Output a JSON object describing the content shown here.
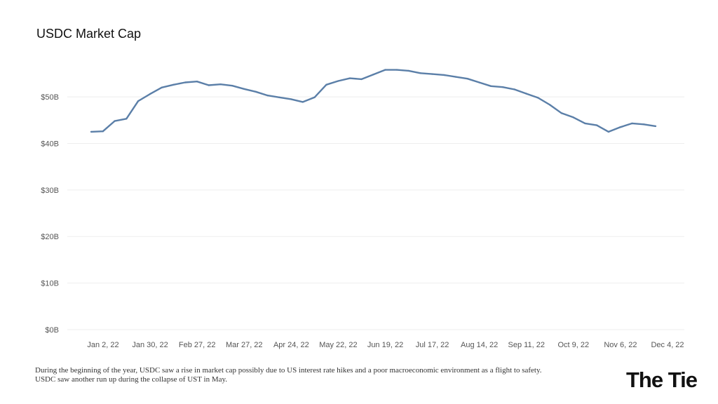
{
  "header": {
    "title": "USDC Market Cap"
  },
  "caption": {
    "line1": "During the beginning of the year, USDC saw a rise in market cap possibly due to US interest rate hikes and a poor macroeconomic environment as a flight to safety.",
    "line2": "USDC saw another run up during the collapse of UST in May."
  },
  "brand": {
    "name": "The Tie"
  },
  "colors": {
    "line": "#5b7fa8",
    "grid": "#eeeeee",
    "axis_text": "#555555"
  },
  "chart_data": {
    "type": "line",
    "title": "USDC Market Cap",
    "xlabel": "",
    "ylabel": "",
    "ylim": [
      0,
      58
    ],
    "y_ticks": [
      0,
      10,
      20,
      30,
      40,
      50
    ],
    "y_tick_labels": [
      "$0B",
      "$10B",
      "$20B",
      "$30B",
      "$40B",
      "$50B"
    ],
    "x_tick_labels": [
      "Jan 2, 22",
      "Jan 30, 22",
      "Feb 27, 22",
      "Mar 27, 22",
      "Apr 24, 22",
      "May 22, 22",
      "Jun 19, 22",
      "Jul 17, 22",
      "Aug 14, 22",
      "Sep 11, 22",
      "Oct 9, 22",
      "Nov 6, 22",
      "Dec 4, 22"
    ],
    "x": [
      "Jan 2, 22",
      "Jan 9, 22",
      "Jan 16, 22",
      "Jan 23, 22",
      "Jan 30, 22",
      "Feb 6, 22",
      "Feb 13, 22",
      "Feb 20, 22",
      "Feb 27, 22",
      "Mar 6, 22",
      "Mar 13, 22",
      "Mar 20, 22",
      "Mar 27, 22",
      "Apr 3, 22",
      "Apr 10, 22",
      "Apr 17, 22",
      "Apr 24, 22",
      "May 1, 22",
      "May 8, 22",
      "May 15, 22",
      "May 22, 22",
      "May 29, 22",
      "Jun 5, 22",
      "Jun 12, 22",
      "Jun 19, 22",
      "Jun 26, 22",
      "Jul 3, 22",
      "Jul 10, 22",
      "Jul 17, 22",
      "Jul 24, 22",
      "Jul 31, 22",
      "Aug 7, 22",
      "Aug 14, 22",
      "Aug 21, 22",
      "Aug 28, 22",
      "Sep 4, 22",
      "Sep 11, 22",
      "Sep 18, 22",
      "Sep 25, 22",
      "Oct 2, 22",
      "Oct 9, 22",
      "Oct 16, 22",
      "Oct 23, 22",
      "Oct 30, 22",
      "Nov 6, 22",
      "Nov 13, 22",
      "Nov 20, 22",
      "Nov 27, 22",
      "Dec 4, 22"
    ],
    "series": [
      {
        "values": [
          42.5,
          42.6,
          44.8,
          45.3,
          49.1,
          50.6,
          52.0,
          52.6,
          53.1,
          53.3,
          52.5,
          52.7,
          52.4,
          51.7,
          51.1,
          50.3,
          49.9,
          49.5,
          48.9,
          49.9,
          52.6,
          53.4,
          54.0,
          53.8,
          54.8,
          55.8,
          55.8,
          55.6,
          55.1,
          54.9,
          54.7,
          54.3,
          53.9,
          53.1,
          52.3,
          52.1,
          51.6,
          50.7,
          49.8,
          48.3,
          46.5,
          45.6,
          44.3,
          43.9,
          42.5,
          43.5,
          44.3,
          44.1,
          43.7
        ]
      }
    ],
    "grid": true,
    "legend": "none"
  }
}
